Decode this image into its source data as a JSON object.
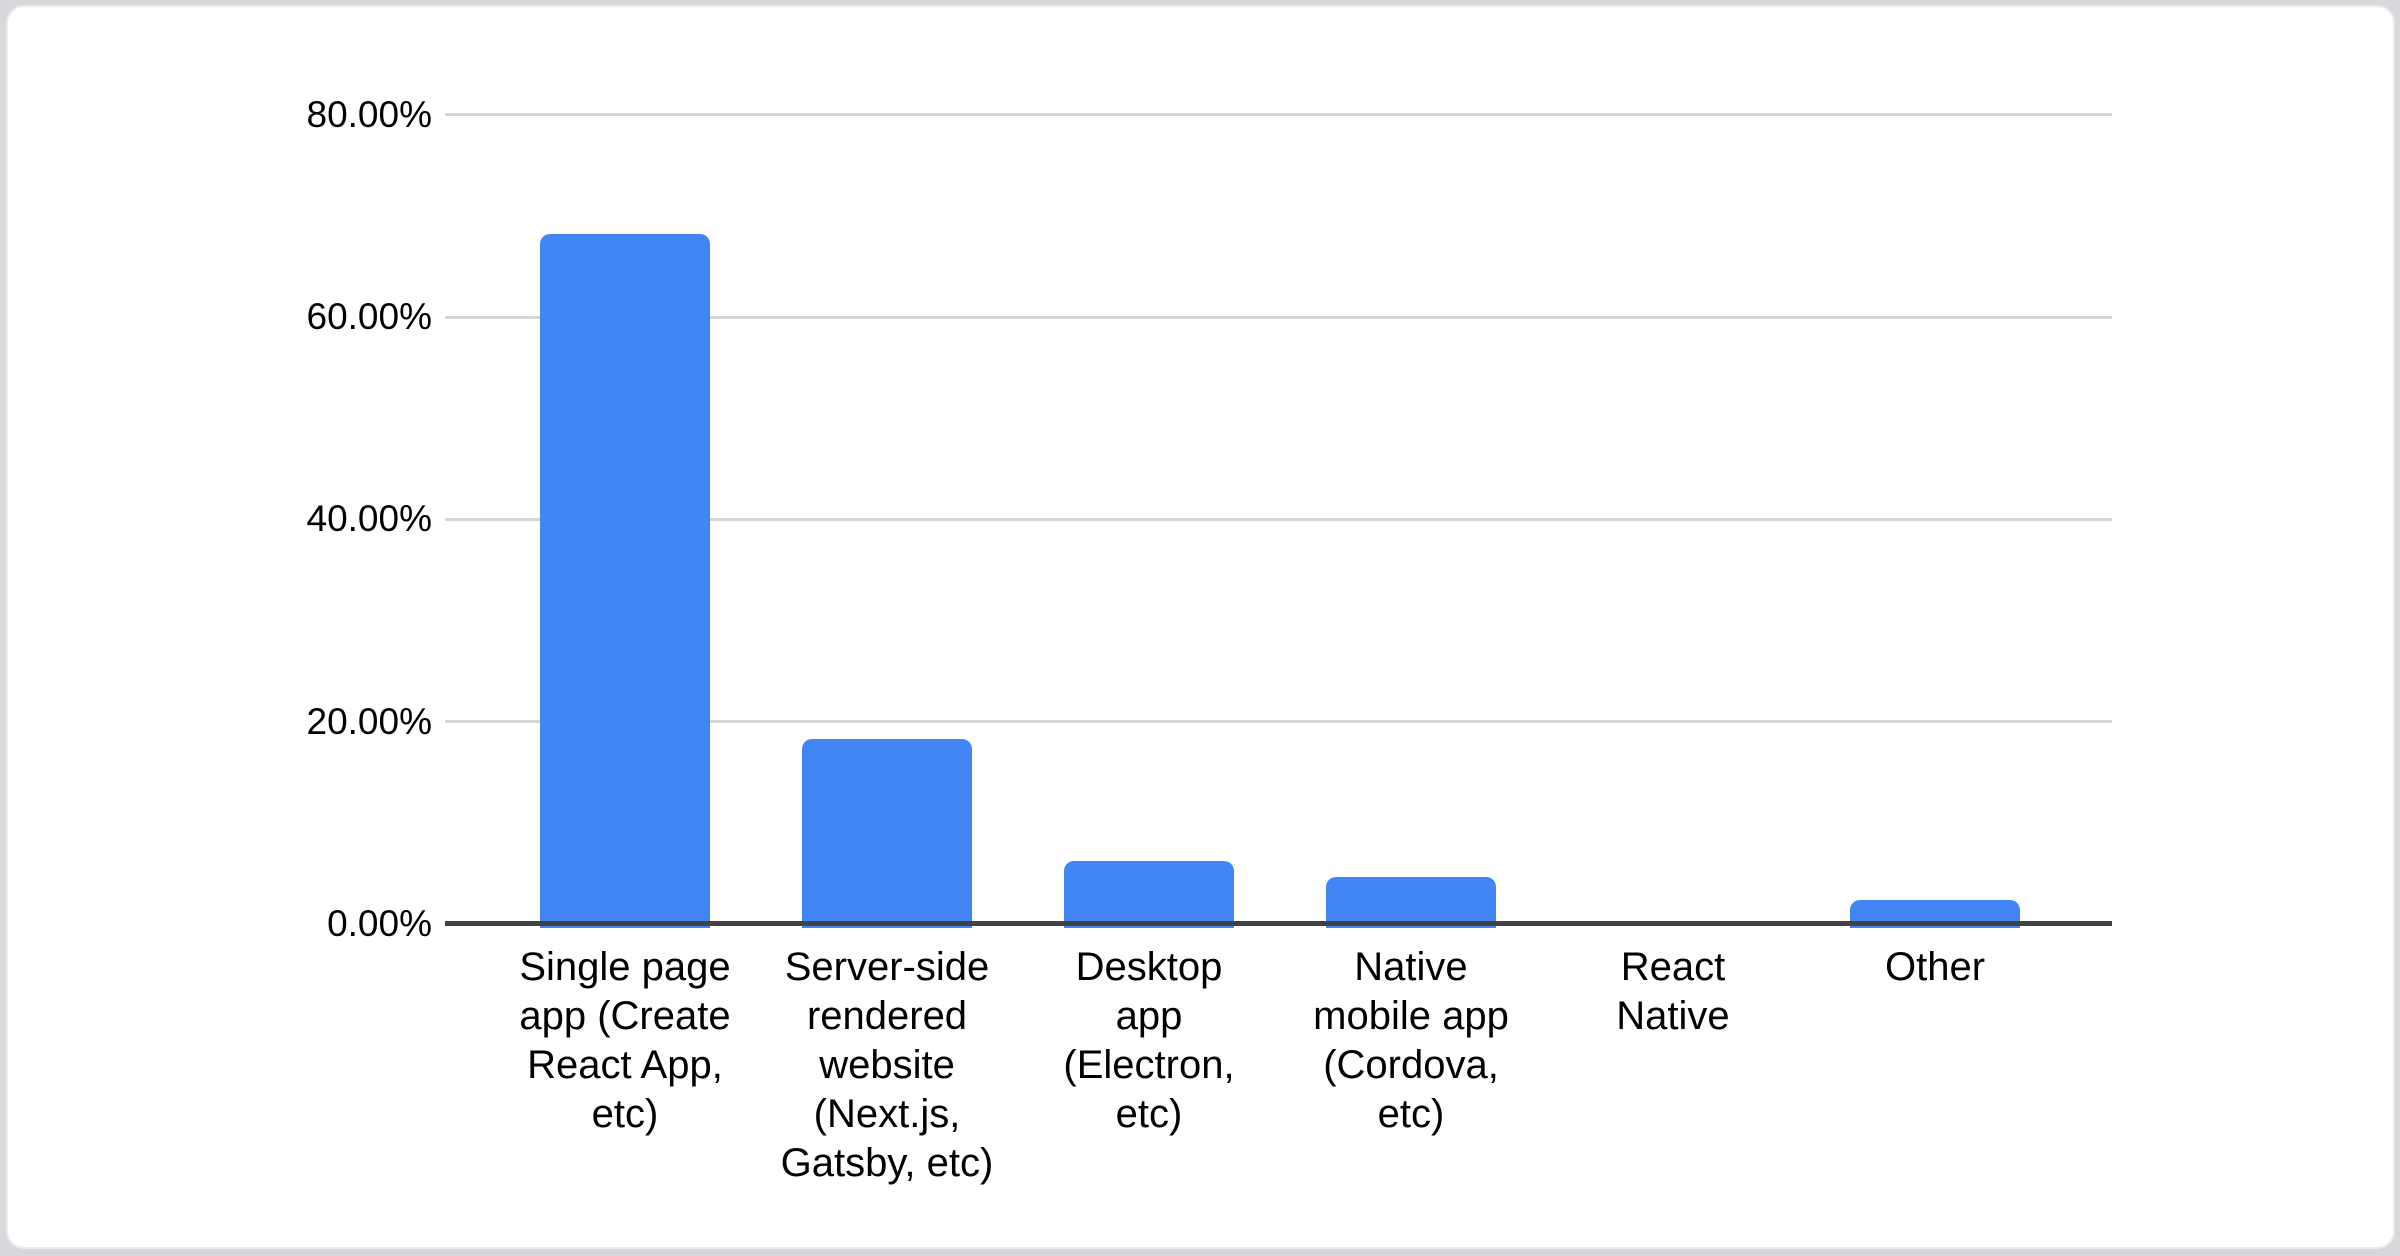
{
  "page": {
    "background_color": "#d6d8db",
    "card_background_color": "#ffffff",
    "card_border_color": "#e9eaec"
  },
  "chart_data": {
    "type": "bar",
    "title": "",
    "categories": [
      "Single page app (Create React App, etc)",
      "Server-side rendered website (Next.js, Gatsby, etc)",
      "Desktop app (Electron, etc)",
      "Native mobile app (Cordova, etc)",
      "React Native",
      "Other"
    ],
    "categories_lines": [
      [
        "Single page",
        "app (Create",
        "React App,",
        "etc)"
      ],
      [
        "Server-side",
        "rendered",
        "website",
        "(Next.js,",
        "Gatsby, etc)"
      ],
      [
        "Desktop",
        "app",
        "(Electron,",
        "etc)"
      ],
      [
        "Native",
        "mobile app",
        "(Cordova,",
        "etc)"
      ],
      [
        "React",
        "Native"
      ],
      [
        "Other"
      ]
    ],
    "values": [
      68.2,
      18.3,
      6.2,
      4.6,
      0,
      2.4
    ],
    "unit": "%",
    "series_name": "",
    "xlabel": "",
    "ylabel": "",
    "ylim": [
      0,
      80
    ],
    "yticks": [
      {
        "value": 80,
        "label": "80.00%"
      },
      {
        "value": 60,
        "label": "60.00%"
      },
      {
        "value": 40,
        "label": "40.00%"
      },
      {
        "value": 20,
        "label": "20.00%"
      },
      {
        "value": 0,
        "label": "0.00%"
      }
    ],
    "grid": true,
    "legend_position": "none",
    "bar_color": "#4285f4",
    "gridline_color": "#d6d6d6",
    "axis_line_color": "#424242",
    "label_color": "#000000"
  }
}
